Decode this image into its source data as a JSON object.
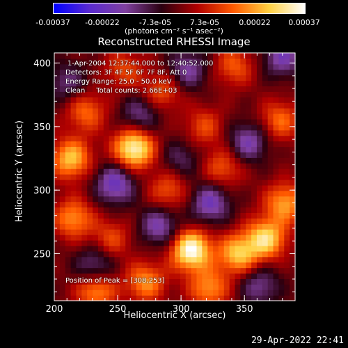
{
  "colorbar": {
    "ticks": [
      "-0.00037",
      "-0.00022",
      "-7.3e-05",
      "7.3e-05",
      "0.00022",
      "0.00037"
    ],
    "tick_values": [
      -0.00037,
      -0.00022,
      -7.3e-05,
      7.3e-05,
      0.00022,
      0.00037
    ],
    "units_label": "(photons cm⁻² s⁻¹ asec⁻²)",
    "colors": [
      "#0000ff",
      "#5a2ad0",
      "#8040a0",
      "#2a0010",
      "#b00000",
      "#ff5a00",
      "#ffd040",
      "#ffffff"
    ]
  },
  "chart_data": {
    "type": "heatmap",
    "title": "Reconstructed RHESSI Image",
    "xlabel": "Heliocentric X (arcsec)",
    "ylabel": "Heliocentric Y (arcsec)",
    "xlim": [
      200,
      390
    ],
    "ylim": [
      213,
      408
    ],
    "x_ticks": [
      200,
      250,
      300,
      350
    ],
    "y_ticks": [
      250,
      300,
      350,
      400
    ],
    "x_tick_labels": [
      "200",
      "250",
      "300",
      "350"
    ],
    "y_tick_labels": [
      "250",
      "300",
      "350",
      "400"
    ],
    "peak": [
      308,
      253
    ],
    "sources": [
      {
        "x": 308,
        "y": 253,
        "v": 1.0
      },
      {
        "x": 263,
        "y": 333,
        "v": 0.95
      },
      {
        "x": 213,
        "y": 325,
        "v": 0.7
      },
      {
        "x": 367,
        "y": 262,
        "v": 0.78
      },
      {
        "x": 345,
        "y": 250,
        "v": 0.7
      },
      {
        "x": 233,
        "y": 222,
        "v": 0.6
      },
      {
        "x": 272,
        "y": 228,
        "v": 0.55
      },
      {
        "x": 322,
        "y": 223,
        "v": 0.55
      },
      {
        "x": 382,
        "y": 290,
        "v": 0.6
      },
      {
        "x": 225,
        "y": 362,
        "v": 0.45
      },
      {
        "x": 285,
        "y": 378,
        "v": 0.4
      },
      {
        "x": 342,
        "y": 398,
        "v": 0.4
      },
      {
        "x": 378,
        "y": 355,
        "v": 0.45
      },
      {
        "x": 215,
        "y": 278,
        "v": 0.55
      },
      {
        "x": 290,
        "y": 300,
        "v": 0.4
      },
      {
        "x": 333,
        "y": 318,
        "v": 0.4
      },
      {
        "x": 245,
        "y": 262,
        "v": 0.35
      },
      {
        "x": 255,
        "y": 395,
        "v": 0.35
      },
      {
        "x": 318,
        "y": 350,
        "v": 0.35
      },
      {
        "x": 248,
        "y": 305,
        "v": -0.6
      },
      {
        "x": 283,
        "y": 272,
        "v": -0.5
      },
      {
        "x": 323,
        "y": 290,
        "v": -0.55
      },
      {
        "x": 353,
        "y": 338,
        "v": -0.5
      },
      {
        "x": 232,
        "y": 240,
        "v": -0.45
      },
      {
        "x": 305,
        "y": 395,
        "v": -0.45
      },
      {
        "x": 380,
        "y": 405,
        "v": -0.5
      },
      {
        "x": 268,
        "y": 360,
        "v": -0.4
      },
      {
        "x": 362,
        "y": 225,
        "v": -0.4
      },
      {
        "x": 210,
        "y": 385,
        "v": -0.35
      },
      {
        "x": 300,
        "y": 325,
        "v": -0.3
      }
    ]
  },
  "annotations": {
    "time_range": "1-Apr-2004 12:37:44.000 to 12:40:52.000",
    "detectors": "Detectors: 3F 4F 5F 6F 7F 8F, Att 0",
    "energy_range": "Energy Range: 25.0 - 50.0 keV",
    "clean_counts": "Clean     Total counts: 2.66E+03",
    "peak_position": "Position of Peak = [308,253]"
  },
  "footer": {
    "date": "29-Apr-2022 22:41"
  }
}
